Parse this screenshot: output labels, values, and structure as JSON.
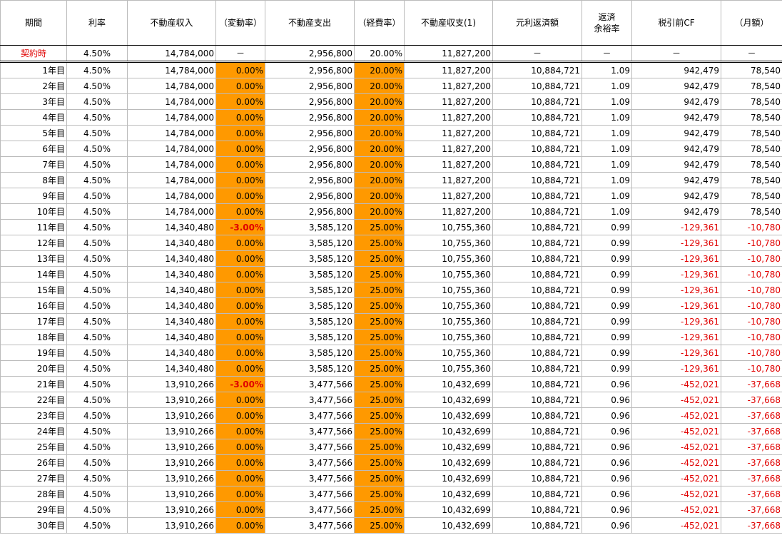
{
  "table": {
    "headers": [
      "期間",
      "利率",
      "不動産収入",
      "（変動率）",
      "不動産支出",
      "（経費率）",
      "不動産収支(1)",
      "元利返済額",
      "返済\n余裕率",
      "税引前CF",
      "（月額）"
    ],
    "contract_row": [
      "契約時",
      "4.50%",
      "14,784,000",
      "－",
      "2,956,800",
      "20.00%",
      "11,827,200",
      "－",
      "－",
      "－",
      "－"
    ],
    "rows": [
      [
        "1年目",
        "4.50%",
        "14,784,000",
        "0.00%",
        "2,956,800",
        "20.00%",
        "11,827,200",
        "10,884,721",
        "1.09",
        "942,479",
        "78,540"
      ],
      [
        "2年目",
        "4.50%",
        "14,784,000",
        "0.00%",
        "2,956,800",
        "20.00%",
        "11,827,200",
        "10,884,721",
        "1.09",
        "942,479",
        "78,540"
      ],
      [
        "3年目",
        "4.50%",
        "14,784,000",
        "0.00%",
        "2,956,800",
        "20.00%",
        "11,827,200",
        "10,884,721",
        "1.09",
        "942,479",
        "78,540"
      ],
      [
        "4年目",
        "4.50%",
        "14,784,000",
        "0.00%",
        "2,956,800",
        "20.00%",
        "11,827,200",
        "10,884,721",
        "1.09",
        "942,479",
        "78,540"
      ],
      [
        "5年目",
        "4.50%",
        "14,784,000",
        "0.00%",
        "2,956,800",
        "20.00%",
        "11,827,200",
        "10,884,721",
        "1.09",
        "942,479",
        "78,540"
      ],
      [
        "6年目",
        "4.50%",
        "14,784,000",
        "0.00%",
        "2,956,800",
        "20.00%",
        "11,827,200",
        "10,884,721",
        "1.09",
        "942,479",
        "78,540"
      ],
      [
        "7年目",
        "4.50%",
        "14,784,000",
        "0.00%",
        "2,956,800",
        "20.00%",
        "11,827,200",
        "10,884,721",
        "1.09",
        "942,479",
        "78,540"
      ],
      [
        "8年目",
        "4.50%",
        "14,784,000",
        "0.00%",
        "2,956,800",
        "20.00%",
        "11,827,200",
        "10,884,721",
        "1.09",
        "942,479",
        "78,540"
      ],
      [
        "9年目",
        "4.50%",
        "14,784,000",
        "0.00%",
        "2,956,800",
        "20.00%",
        "11,827,200",
        "10,884,721",
        "1.09",
        "942,479",
        "78,540"
      ],
      [
        "10年目",
        "4.50%",
        "14,784,000",
        "0.00%",
        "2,956,800",
        "20.00%",
        "11,827,200",
        "10,884,721",
        "1.09",
        "942,479",
        "78,540"
      ],
      [
        "11年目",
        "4.50%",
        "14,340,480",
        "-3.00%",
        "3,585,120",
        "25.00%",
        "10,755,360",
        "10,884,721",
        "0.99",
        "-129,361",
        "-10,780"
      ],
      [
        "12年目",
        "4.50%",
        "14,340,480",
        "0.00%",
        "3,585,120",
        "25.00%",
        "10,755,360",
        "10,884,721",
        "0.99",
        "-129,361",
        "-10,780"
      ],
      [
        "13年目",
        "4.50%",
        "14,340,480",
        "0.00%",
        "3,585,120",
        "25.00%",
        "10,755,360",
        "10,884,721",
        "0.99",
        "-129,361",
        "-10,780"
      ],
      [
        "14年目",
        "4.50%",
        "14,340,480",
        "0.00%",
        "3,585,120",
        "25.00%",
        "10,755,360",
        "10,884,721",
        "0.99",
        "-129,361",
        "-10,780"
      ],
      [
        "15年目",
        "4.50%",
        "14,340,480",
        "0.00%",
        "3,585,120",
        "25.00%",
        "10,755,360",
        "10,884,721",
        "0.99",
        "-129,361",
        "-10,780"
      ],
      [
        "16年目",
        "4.50%",
        "14,340,480",
        "0.00%",
        "3,585,120",
        "25.00%",
        "10,755,360",
        "10,884,721",
        "0.99",
        "-129,361",
        "-10,780"
      ],
      [
        "17年目",
        "4.50%",
        "14,340,480",
        "0.00%",
        "3,585,120",
        "25.00%",
        "10,755,360",
        "10,884,721",
        "0.99",
        "-129,361",
        "-10,780"
      ],
      [
        "18年目",
        "4.50%",
        "14,340,480",
        "0.00%",
        "3,585,120",
        "25.00%",
        "10,755,360",
        "10,884,721",
        "0.99",
        "-129,361",
        "-10,780"
      ],
      [
        "19年目",
        "4.50%",
        "14,340,480",
        "0.00%",
        "3,585,120",
        "25.00%",
        "10,755,360",
        "10,884,721",
        "0.99",
        "-129,361",
        "-10,780"
      ],
      [
        "20年目",
        "4.50%",
        "14,340,480",
        "0.00%",
        "3,585,120",
        "25.00%",
        "10,755,360",
        "10,884,721",
        "0.99",
        "-129,361",
        "-10,780"
      ],
      [
        "21年目",
        "4.50%",
        "13,910,266",
        "-3.00%",
        "3,477,566",
        "25.00%",
        "10,432,699",
        "10,884,721",
        "0.96",
        "-452,021",
        "-37,668"
      ],
      [
        "22年目",
        "4.50%",
        "13,910,266",
        "0.00%",
        "3,477,566",
        "25.00%",
        "10,432,699",
        "10,884,721",
        "0.96",
        "-452,021",
        "-37,668"
      ],
      [
        "23年目",
        "4.50%",
        "13,910,266",
        "0.00%",
        "3,477,566",
        "25.00%",
        "10,432,699",
        "10,884,721",
        "0.96",
        "-452,021",
        "-37,668"
      ],
      [
        "24年目",
        "4.50%",
        "13,910,266",
        "0.00%",
        "3,477,566",
        "25.00%",
        "10,432,699",
        "10,884,721",
        "0.96",
        "-452,021",
        "-37,668"
      ],
      [
        "25年目",
        "4.50%",
        "13,910,266",
        "0.00%",
        "3,477,566",
        "25.00%",
        "10,432,699",
        "10,884,721",
        "0.96",
        "-452,021",
        "-37,668"
      ],
      [
        "26年目",
        "4.50%",
        "13,910,266",
        "0.00%",
        "3,477,566",
        "25.00%",
        "10,432,699",
        "10,884,721",
        "0.96",
        "-452,021",
        "-37,668"
      ],
      [
        "27年目",
        "4.50%",
        "13,910,266",
        "0.00%",
        "3,477,566",
        "25.00%",
        "10,432,699",
        "10,884,721",
        "0.96",
        "-452,021",
        "-37,668"
      ],
      [
        "28年目",
        "4.50%",
        "13,910,266",
        "0.00%",
        "3,477,566",
        "25.00%",
        "10,432,699",
        "10,884,721",
        "0.96",
        "-452,021",
        "-37,668"
      ],
      [
        "29年目",
        "4.50%",
        "13,910,266",
        "0.00%",
        "3,477,566",
        "25.00%",
        "10,432,699",
        "10,884,721",
        "0.96",
        "-452,021",
        "-37,668"
      ],
      [
        "30年目",
        "4.50%",
        "13,910,266",
        "0.00%",
        "3,477,566",
        "25.00%",
        "10,432,699",
        "10,884,721",
        "0.96",
        "-452,021",
        "-37,668"
      ]
    ]
  }
}
